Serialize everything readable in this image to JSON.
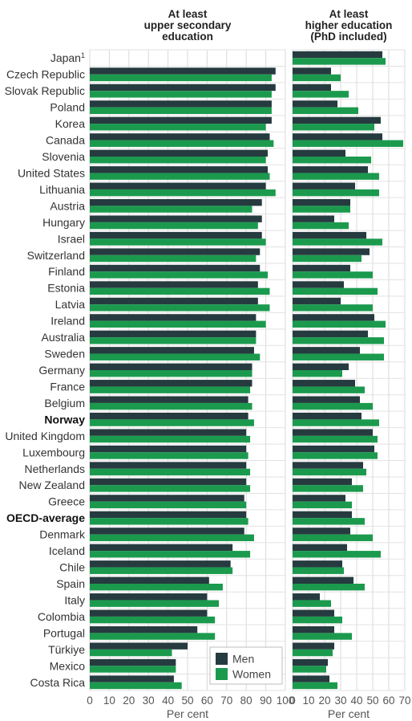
{
  "chart_data": {
    "type": "bar",
    "orientation": "horizontal",
    "xlabel": "Per cent",
    "categories": [
      "Japan¹",
      "Czech Republic",
      "Slovak Republic",
      "Poland",
      "Korea",
      "Canada",
      "Slovenia",
      "United States",
      "Lithuania",
      "Austria",
      "Hungary",
      "Israel",
      "Switzerland",
      "Finland",
      "Estonia",
      "Latvia",
      "Ireland",
      "Australia",
      "Sweden",
      "Germany",
      "France",
      "Belgium",
      "Norway",
      "United Kingdom",
      "Luxembourg",
      "Netherlands",
      "New Zealand",
      "Greece",
      "OECD-average",
      "Denmark",
      "Iceland",
      "Chile",
      "Spain",
      "Italy",
      "Colombia",
      "Portugal",
      "Türkiye",
      "Mexico",
      "Costa Rica"
    ],
    "bold_categories": [
      "Norway",
      "OECD-average"
    ],
    "legend": [
      {
        "name": "Men",
        "color": "#263b3f"
      },
      {
        "name": "Women",
        "color": "#1b9a4e"
      }
    ],
    "legend_position": "bottom-right of left panel",
    "grid": true,
    "panels": [
      {
        "title": "At least upper secondary education",
        "title_lines": [
          "At least",
          "upper secondary",
          "education"
        ],
        "xlim": [
          0,
          100
        ],
        "ticks": [
          0,
          10,
          20,
          30,
          40,
          50,
          60,
          70,
          80,
          90,
          100
        ],
        "series": [
          {
            "name": "Men",
            "values": [
              null,
              95,
              95,
              93,
              93,
              92,
              91,
              91,
              90,
              88,
              88,
              88,
              87,
              87,
              86,
              86,
              85,
              85,
              84,
              83,
              83,
              81,
              81,
              80,
              80,
              80,
              80,
              79,
              80,
              79,
              73,
              72,
              61,
              60,
              60,
              55,
              50,
              44,
              43
            ]
          },
          {
            "name": "Women",
            "values": [
              null,
              93,
              93,
              93,
              90,
              94,
              90,
              92,
              95,
              83,
              86,
              90,
              85,
              91,
              92,
              92,
              90,
              85,
              87,
              83,
              82,
              83,
              84,
              82,
              81,
              82,
              82,
              80,
              81,
              84,
              82,
              73,
              68,
              66,
              64,
              64,
              42,
              44,
              47
            ]
          }
        ]
      },
      {
        "title": "At least higher education (PhD included)",
        "title_lines": [
          "At least",
          "higher education",
          "(PhD included)"
        ],
        "xlim": [
          0,
          70
        ],
        "ticks": [
          0,
          10,
          20,
          30,
          40,
          50,
          60,
          70
        ],
        "series": [
          {
            "name": "Men",
            "values": [
              56,
              24,
              24,
              28,
              55,
              56,
              33,
              47,
              39,
              36,
              26,
              46,
              48,
              36,
              32,
              30,
              51,
              47,
              42,
              35,
              39,
              42,
              43,
              50,
              51,
              44,
              37,
              33,
              37,
              36,
              34,
              31,
              38,
              17,
              26,
              26,
              26,
              22,
              23
            ]
          },
          {
            "name": "Women",
            "values": [
              58,
              30,
              35,
              41,
              51,
              69,
              49,
              54,
              54,
              36,
              35,
              56,
              43,
              50,
              53,
              50,
              58,
              57,
              57,
              31,
              45,
              50,
              54,
              53,
              53,
              46,
              44,
              37,
              45,
              50,
              55,
              32,
              45,
              24,
              31,
              37,
              25,
              21,
              28
            ]
          }
        ]
      }
    ]
  }
}
